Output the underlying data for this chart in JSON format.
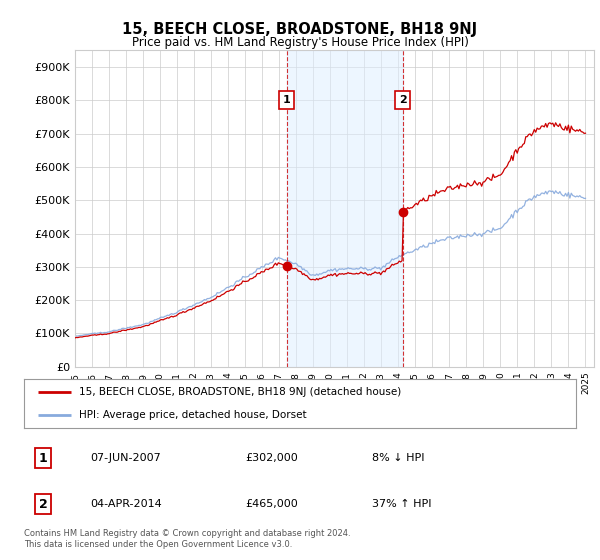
{
  "title": "15, BEECH CLOSE, BROADSTONE, BH18 9NJ",
  "subtitle": "Price paid vs. HM Land Registry's House Price Index (HPI)",
  "ylim": [
    0,
    950000
  ],
  "yticks": [
    0,
    100000,
    200000,
    300000,
    400000,
    500000,
    600000,
    700000,
    800000,
    900000
  ],
  "sale1_price": 302000,
  "sale2_price": 465000,
  "sale1_x": 2007.44,
  "sale2_x": 2014.26,
  "line_color_property": "#cc0000",
  "line_color_hpi": "#88aadd",
  "vline_color": "#cc0000",
  "shade_color": "#ddeeff",
  "legend_label_property": "15, BEECH CLOSE, BROADSTONE, BH18 9NJ (detached house)",
  "legend_label_hpi": "HPI: Average price, detached house, Dorset",
  "footer": "Contains HM Land Registry data © Crown copyright and database right 2024.\nThis data is licensed under the Open Government Licence v3.0.",
  "background_color": "#ffffff",
  "grid_color": "#cccccc",
  "sale_table": [
    {
      "num": "1",
      "date": "07-JUN-2007",
      "price": "£302,000",
      "hpi": "8% ↓ HPI"
    },
    {
      "num": "2",
      "date": "04-APR-2014",
      "price": "£465,000",
      "hpi": "37% ↑ HPI"
    }
  ],
  "xlim_start": 1995,
  "xlim_end": 2025.5
}
